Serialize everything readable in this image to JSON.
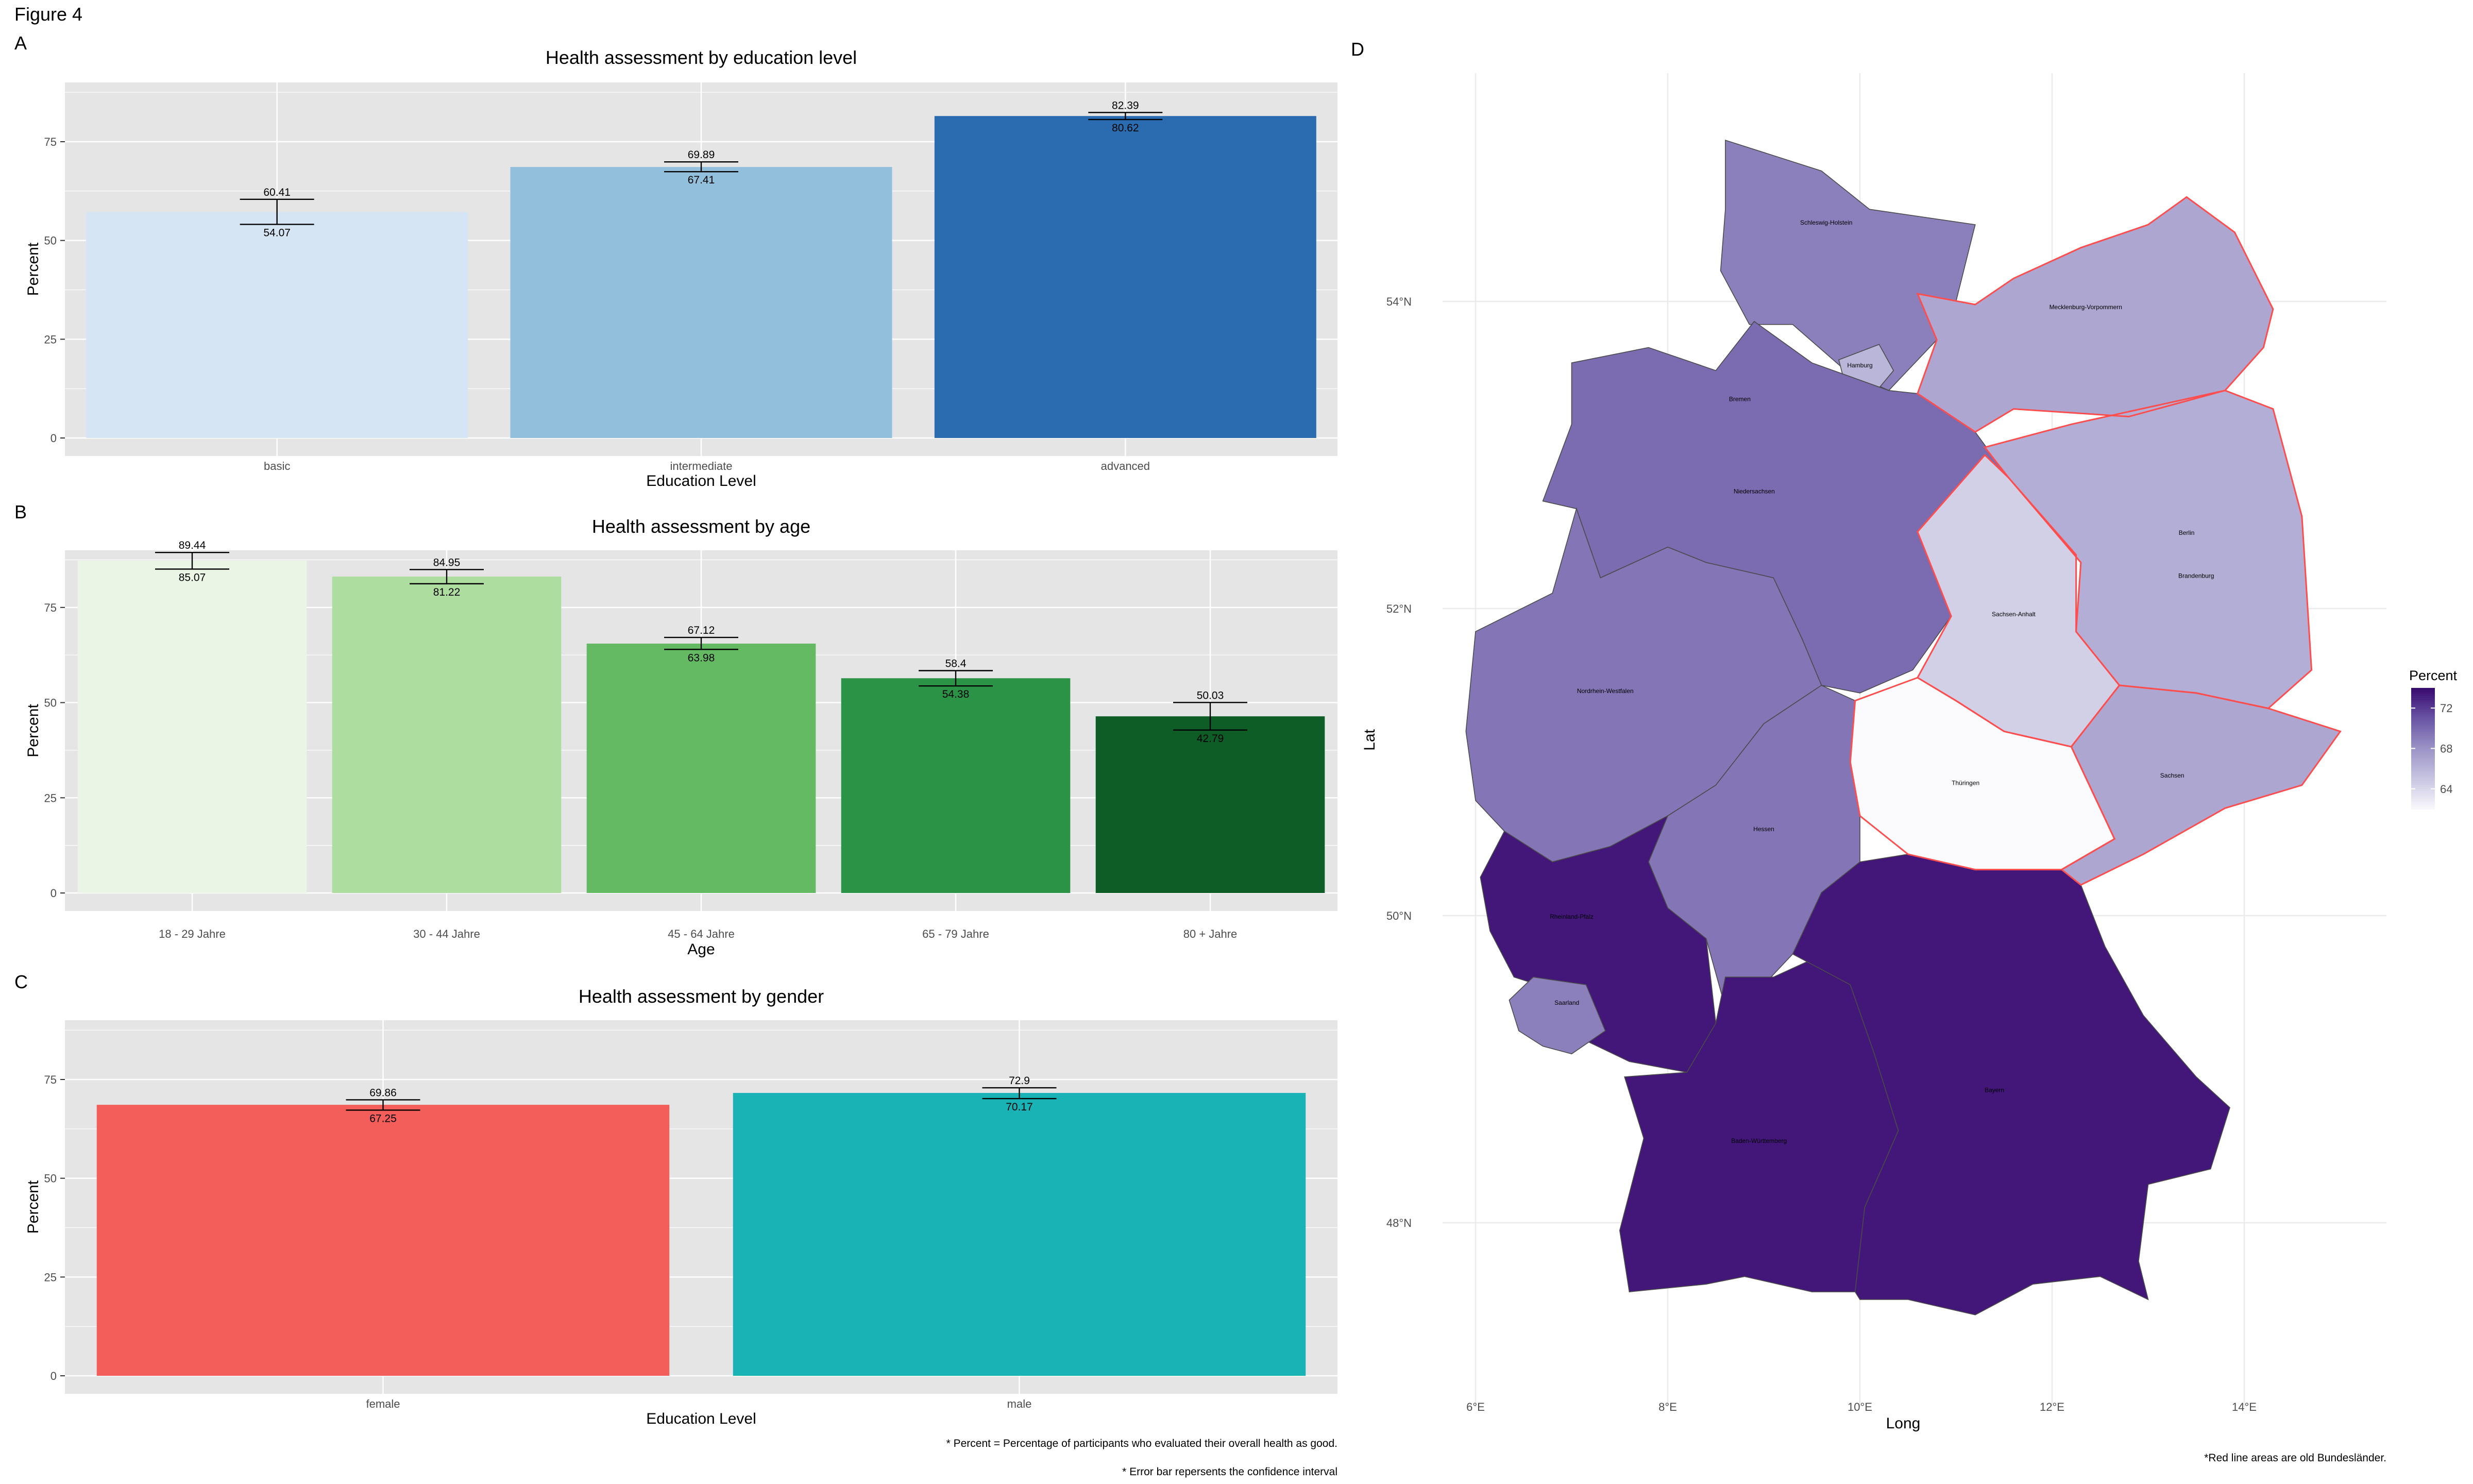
{
  "figure_title": "Figure 4",
  "colors": {
    "panel_bg": "#e5e5e5",
    "grid": "#ffffff",
    "bars_education": [
      "#d6e5f4",
      "#91bfdc",
      "#2b6cb0"
    ],
    "bars_age": [
      "#eaf5e6",
      "#aede9f",
      "#64ba63",
      "#2b9346",
      "#0e5c26"
    ],
    "bars_gender": [
      "#f35e5b",
      "#19b3b6"
    ],
    "map_scale": [
      "#fbfafd",
      "#c9c7e2",
      "#9d95c7",
      "#6a56a5",
      "#3a0b70"
    ],
    "old_laender_outline": "#ff4d4d"
  },
  "chart_data": [
    {
      "type": "bar",
      "panel": "A",
      "title": "Health assessment by education level",
      "xlabel": "Education Level",
      "ylabel": "Percent",
      "ylim": [
        0,
        90
      ],
      "yticks": [
        0,
        25,
        50,
        75
      ],
      "categories": [
        "basic",
        "intermediate",
        "advanced"
      ],
      "values": [
        57.2,
        68.6,
        81.5
      ],
      "ci_upper": [
        "60.41",
        "69.89",
        "82.39"
      ],
      "ci_lower": [
        "54.07",
        "67.41",
        "80.62"
      ],
      "grid": true,
      "legend": "none"
    },
    {
      "type": "bar",
      "panel": "B",
      "title": "Health assessment by age",
      "xlabel": "Age",
      "ylabel": "Percent",
      "ylim": [
        0,
        90
      ],
      "yticks": [
        0,
        25,
        50,
        75
      ],
      "categories": [
        "18 - 29 Jahre",
        "30 - 44 Jahre",
        "45 - 64 Jahre",
        "65 - 79 Jahre",
        "80 + Jahre"
      ],
      "values": [
        87.3,
        83.1,
        65.5,
        56.4,
        46.4
      ],
      "ci_upper": [
        "89.44",
        "84.95",
        "67.12",
        "58.4",
        "50.03"
      ],
      "ci_lower": [
        "85.07",
        "81.22",
        "63.98",
        "54.38",
        "42.79"
      ],
      "grid": true,
      "legend": "none"
    },
    {
      "type": "bar",
      "panel": "C",
      "title": "Health assessment by gender",
      "xlabel": "Education Level",
      "ylabel": "Percent",
      "ylim": [
        0,
        90
      ],
      "yticks": [
        0,
        25,
        50,
        75
      ],
      "categories": [
        "female",
        "male"
      ],
      "values": [
        68.6,
        71.6
      ],
      "ci_upper": [
        "69.86",
        "72.9"
      ],
      "ci_lower": [
        "67.25",
        "70.17"
      ],
      "grid": true,
      "legend": "none"
    },
    {
      "type": "heatmap",
      "panel": "D",
      "xlabel": "Long",
      "ylabel": "Lat",
      "xticks": [
        "6°E",
        "8°E",
        "10°E",
        "12°E",
        "14°E"
      ],
      "yticks": [
        "48°N",
        "50°N",
        "52°N",
        "54°N"
      ],
      "legend_title": "Percent",
      "legend_ticks": [
        64,
        68,
        72
      ],
      "legend": "right",
      "regions": [
        {
          "name": "Schleswig-Holstein",
          "value": 69
        },
        {
          "name": "Hamburg",
          "value": 66
        },
        {
          "name": "Mecklenburg-Vorpommern",
          "value": 67,
          "old_land": true
        },
        {
          "name": "Bremen",
          "value": 63
        },
        {
          "name": "Niedersachsen",
          "value": 70
        },
        {
          "name": "Berlin",
          "value": 69
        },
        {
          "name": "Brandenburg",
          "value": 66.5,
          "old_land": true
        },
        {
          "name": "Sachsen-Anhalt",
          "value": 64.5,
          "old_land": true
        },
        {
          "name": "Nordrhein-Westfalen",
          "value": 69.5
        },
        {
          "name": "Thüringen",
          "value": 62,
          "old_land": true
        },
        {
          "name": "Sachsen",
          "value": 67,
          "old_land": true
        },
        {
          "name": "Hessen",
          "value": 69.5
        },
        {
          "name": "Rheinland-Pfalz",
          "value": 73.5
        },
        {
          "name": "Saarland",
          "value": 69
        },
        {
          "name": "Baden-Württemberg",
          "value": 73.5
        },
        {
          "name": "Bayern",
          "value": 73.5
        }
      ]
    }
  ],
  "notes": {
    "percent_note": "* Percent = Percentage of participants who evaluated their overall health as good.",
    "errorbar_note": "* Error bar repersents the confidence interval",
    "map_note": "*Red line areas are old Bundesländer."
  }
}
